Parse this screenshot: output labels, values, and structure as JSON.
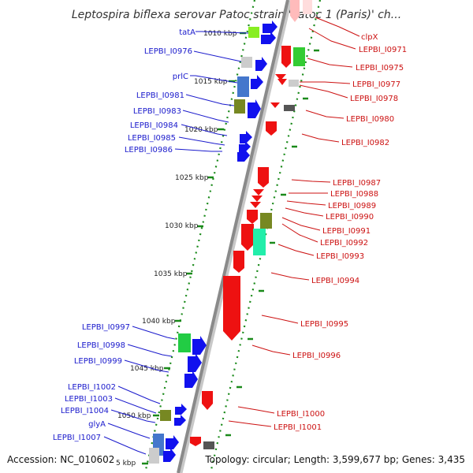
{
  "title": "Leptospira biflexa serovar Patoc strain 'Patoc 1 (Paris)' ch...",
  "footer": {
    "accession": "Accession: NC_010602",
    "topology": "Topology: circular; Length: 3,599,677 bp; Genes: 3,435"
  },
  "colors": {
    "forward": "#1111ee",
    "reverse": "#ee1111",
    "backbone": "#999999",
    "tick": "#1a8a1a",
    "leftLabel": "#1a1acc",
    "rightLabel": "#cc1111"
  },
  "kbp_labels": [
    "1010 kbp",
    "1015 kbp",
    "1020 kbp",
    "1025 kbp",
    "1030 kbp",
    "1035 kbp",
    "1040 kbp",
    "1045 kbp",
    "1050 kbp",
    "5 kbp"
  ],
  "left_labels": [
    "tatA",
    "LEPBI_I0976",
    "prlC",
    "LEPBI_I0981",
    "LEPBI_I0983",
    "LEPBI_I0984",
    "LEPBI_I0985",
    "LEPBI_I0986",
    "LEPBI_I0997",
    "LEPBI_I0998",
    "LEPBI_I0999",
    "LEPBI_I1002",
    "LEPBI_I1003",
    "LEPBI_I1004",
    "glyA",
    "LEPBI_I1007"
  ],
  "right_labels": [
    "clpX",
    "LEPBI_I0971",
    "LEPBI_I0975",
    "LEPBI_I0977",
    "LEPBI_I0978",
    "LEPBI_I0980",
    "LEPBI_I0982",
    "LEPBI_I0987",
    "LEPBI_I0988",
    "LEPBI_I0989",
    "LEPBI_I0990",
    "LEPBI_I0991",
    "LEPBI_I0992",
    "LEPBI_I0993",
    "LEPBI_I0994",
    "LEPBI_I0995",
    "LEPBI_I0996",
    "LEPBI_I1000",
    "LEPBI_I1001"
  ]
}
